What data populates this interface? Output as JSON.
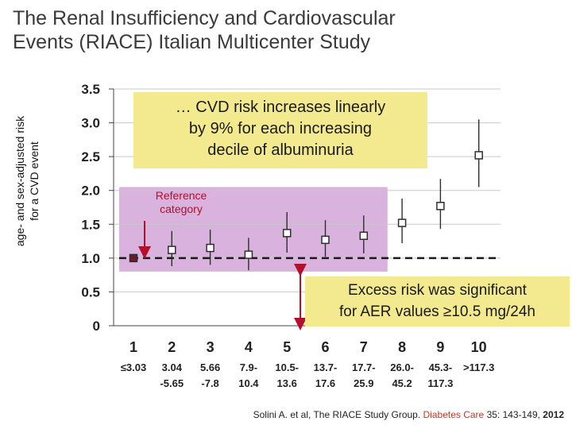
{
  "title": {
    "line1": "The Renal Insufficiency and Cardiovascular",
    "line2": "Events (RIACE) Italian Multicenter Study"
  },
  "chart_data": {
    "type": "scatter",
    "ylabel_line1": "age- and sex-adjusted risk",
    "ylabel_line2": "for a CVD event",
    "ylim": [
      0,
      3.5
    ],
    "yticks": [
      {
        "value": 3.5,
        "label": "3.5"
      },
      {
        "value": 3.0,
        "label": "3.0"
      },
      {
        "value": 2.5,
        "label": "2.5"
      },
      {
        "value": 2.0,
        "label": "2.0"
      },
      {
        "value": 1.5,
        "label": "1.5"
      },
      {
        "value": 1.0,
        "label": "1.0"
      },
      {
        "value": 0.5,
        "label": "0.5"
      },
      {
        "value": 0,
        "label": "0"
      }
    ],
    "reference_value": 1.0,
    "categories": [
      {
        "decile": "1",
        "range_line1": "≤3.03",
        "range_line2": "",
        "estimate": 1.0,
        "ci_low": 1.0,
        "ci_high": 1.0,
        "reference": true
      },
      {
        "decile": "2",
        "range_line1": "3.04",
        "range_line2": "-5.65",
        "estimate": 1.12,
        "ci_low": 0.88,
        "ci_high": 1.4,
        "reference": false
      },
      {
        "decile": "3",
        "range_line1": "5.66",
        "range_line2": "-7.8",
        "estimate": 1.15,
        "ci_low": 0.9,
        "ci_high": 1.42,
        "reference": false
      },
      {
        "decile": "4",
        "range_line1": "7.9-",
        "range_line2": "10.4",
        "estimate": 1.05,
        "ci_low": 0.82,
        "ci_high": 1.3,
        "reference": false
      },
      {
        "decile": "5",
        "range_line1": "10.5-",
        "range_line2": "13.6",
        "estimate": 1.37,
        "ci_low": 1.08,
        "ci_high": 1.68,
        "reference": false
      },
      {
        "decile": "6",
        "range_line1": "13.7-",
        "range_line2": "17.6",
        "estimate": 1.27,
        "ci_low": 1.02,
        "ci_high": 1.56,
        "reference": false
      },
      {
        "decile": "7",
        "range_line1": "17.7-",
        "range_line2": "25.9",
        "estimate": 1.33,
        "ci_low": 1.07,
        "ci_high": 1.63,
        "reference": false
      },
      {
        "decile": "8",
        "range_line1": "26.0-",
        "range_line2": "45.2",
        "estimate": 1.52,
        "ci_low": 1.22,
        "ci_high": 1.88,
        "reference": false
      },
      {
        "decile": "9",
        "range_line1": "45.3-",
        "range_line2": "117.3",
        "estimate": 1.77,
        "ci_low": 1.43,
        "ci_high": 2.17,
        "reference": false
      },
      {
        "decile": "10",
        "range_line1": ">117.3",
        "range_line2": "",
        "estimate": 2.52,
        "ci_low": 2.05,
        "ci_high": 3.05,
        "reference": false
      }
    ],
    "shaded_region": {
      "x_from_decile": 1,
      "x_to_decile": 7,
      "y_from": 0.8,
      "y_to": 2.05,
      "color": "#d9b3dd"
    },
    "colors": {
      "marker_border": "#2e2e2e",
      "reference_marker": "#6e1a2e",
      "arrow": "#b2102b",
      "dashed_line": "#1a1a1a",
      "grid": "#c8c8c8"
    }
  },
  "annotations": {
    "cvd_risk_line1": "… CVD risk increases linearly",
    "cvd_risk_line2": "by 9% for each increasing",
    "cvd_risk_line3": "decile of albuminuria",
    "reference_line1": "Reference",
    "reference_line2": "category",
    "excess_line1": "Excess risk was significant",
    "excess_line2": "for AER values ≥10.5 mg/24h"
  },
  "citation": {
    "authors": "Solini A. et al, The RIACE Study Group. ",
    "journal": "Diabetes Care",
    "volume_pages": " 35: 143-149, ",
    "year": "2012"
  }
}
